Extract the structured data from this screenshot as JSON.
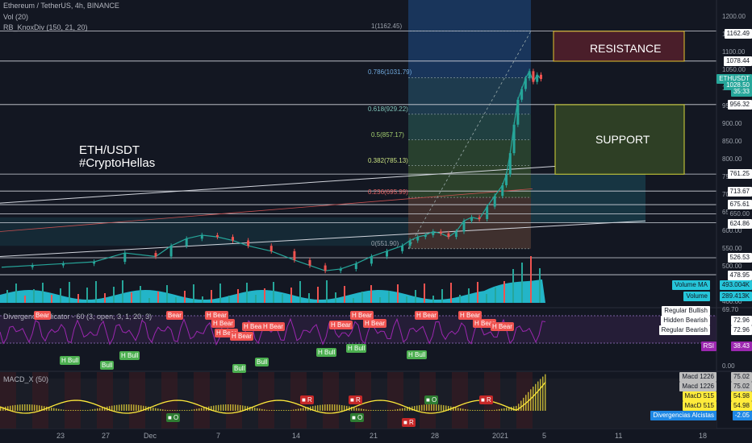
{
  "header": {
    "symbol": "Ethereum / TetherUS, 4h, BINANCE",
    "vol": "Vol (20)",
    "knox": "RB_KnoxDiv (150, 21, 20)"
  },
  "panes": {
    "divergence_title": "Divergence Indicator - 60 (3, open, 3, 1, 20, 3)",
    "macd_title": "MACD_X (50)"
  },
  "annotations": {
    "title_line1": "ETH/USDT",
    "title_line2": "#CryptoHellas",
    "resistance": "RESISTANCE",
    "support": "SUPPORT"
  },
  "colors": {
    "background": "#131722",
    "resistance_box": "#e6c62e",
    "support_box": "#d8d83a",
    "volume": "#26c6da",
    "rsi": "#9c27b0",
    "macd": "#ffeb3b",
    "bear_label": "#ef5350",
    "bull_label": "#4caf50"
  },
  "chart_data": {
    "type": "line",
    "price_axis_ticks": [
      "1200.00",
      "1150.00",
      "1100.00",
      "1050.00",
      "1000.00",
      "950.00",
      "900.00",
      "850.00",
      "800.00",
      "750.00",
      "700.00",
      "650.00",
      "600.00",
      "550.00",
      "500.00",
      "450.00",
      "400.00"
    ],
    "x_ticks": [
      "23",
      "27",
      "Dec",
      "7",
      "14",
      "21",
      "28",
      "2021",
      "5",
      "11",
      "18"
    ],
    "fib_levels": [
      {
        "label": "1(1162.45)",
        "value": 1162.45
      },
      {
        "label": "0.786(1031.79)",
        "value": 1031.79
      },
      {
        "label": "0.618(929.22)",
        "value": 929.22
      },
      {
        "label": "0.5(857.17)",
        "value": 857.17
      },
      {
        "label": "0.382(785.13)",
        "value": 785.13
      },
      {
        "label": "0.236(695.99)",
        "value": 695.99
      },
      {
        "label": "0(551.90)",
        "value": 551.9
      }
    ],
    "price_tags": [
      {
        "text": "1162.49",
        "style": "white"
      },
      {
        "text": "1078.44",
        "style": "white"
      },
      {
        "text": "ETHUSDT",
        "style": "teal"
      },
      {
        "text": "1028.50",
        "style": "teal"
      },
      {
        "text": "35:33",
        "style": "teal"
      },
      {
        "text": "956.32",
        "style": "white"
      },
      {
        "text": "761.25",
        "style": "white"
      },
      {
        "text": "713.67",
        "style": "white"
      },
      {
        "text": "675.61",
        "style": "white"
      },
      {
        "text": "650.00",
        "style": "dark"
      },
      {
        "text": "624.86",
        "style": "white"
      },
      {
        "text": "526.53",
        "style": "white"
      },
      {
        "text": "478.95",
        "style": "white"
      }
    ],
    "volume_tags": [
      {
        "name": "Volume MA",
        "value": "493.004K"
      },
      {
        "name": "Volume",
        "value": "289.413K"
      }
    ],
    "rsi_pane": {
      "ticks": [
        "69.70",
        "0.00"
      ],
      "legend": [
        "Regular Bullish",
        "Hidden Bearish",
        "Regular Bearish"
      ],
      "legend_values": [
        "72.96",
        "72.96"
      ],
      "rsi_label": "RSI",
      "rsi_value": "38.43",
      "labels": [
        "Bear",
        "Bear",
        "H Bear",
        "H Bear",
        "H Bear",
        "H Bear",
        "H Bear",
        "H Bear",
        "H Bear",
        "H Bear",
        "H Bear",
        "H Bear",
        "H Bear",
        "H Bear",
        "H Bear",
        "H Bull",
        "Bull",
        "H Bull",
        "Bull",
        "Bull",
        "H Bull",
        "H Bull",
        "H Bull"
      ]
    },
    "macd_pane": {
      "tags": [
        {
          "name": "Macd 1226",
          "value": "75.02"
        },
        {
          "name": "Macd 1226",
          "value": "75.02"
        },
        {
          "name": "MacD 515",
          "value": "54.98"
        },
        {
          "name": "MacD 515",
          "value": "54.98"
        },
        {
          "name": "Divergencias Alcistas",
          "value": "-2.05"
        }
      ],
      "markers": [
        "R",
        "R",
        "O",
        "R",
        "O",
        "O",
        "R"
      ]
    },
    "close_path": [
      [
        0,
        500
      ],
      [
        4,
        505
      ],
      [
        8,
        510
      ],
      [
        12,
        515
      ],
      [
        16,
        540
      ],
      [
        20,
        530
      ],
      [
        22,
        560
      ],
      [
        24,
        580
      ],
      [
        26,
        590
      ],
      [
        28,
        585
      ],
      [
        30,
        575
      ],
      [
        32,
        560
      ],
      [
        35,
        545
      ],
      [
        38,
        520
      ],
      [
        40,
        505
      ],
      [
        42,
        490
      ],
      [
        44,
        495
      ],
      [
        46,
        510
      ],
      [
        48,
        530
      ],
      [
        50,
        545
      ],
      [
        52,
        560
      ],
      [
        53,
        575
      ],
      [
        54,
        585
      ],
      [
        55,
        590
      ],
      [
        56,
        600
      ],
      [
        57,
        595
      ],
      [
        58,
        585
      ],
      [
        59,
        600
      ],
      [
        60,
        630
      ],
      [
        61,
        640
      ],
      [
        62,
        635
      ],
      [
        63,
        670
      ],
      [
        64,
        700
      ],
      [
        65,
        730
      ],
      [
        65.5,
        760
      ],
      [
        66,
        820
      ],
      [
        66.5,
        900
      ],
      [
        67,
        970
      ],
      [
        67.5,
        1000
      ],
      [
        68,
        1030
      ],
      [
        68.5,
        1050
      ],
      [
        69,
        1020
      ],
      [
        69.5,
        1040
      ],
      [
        70,
        1028
      ]
    ]
  }
}
